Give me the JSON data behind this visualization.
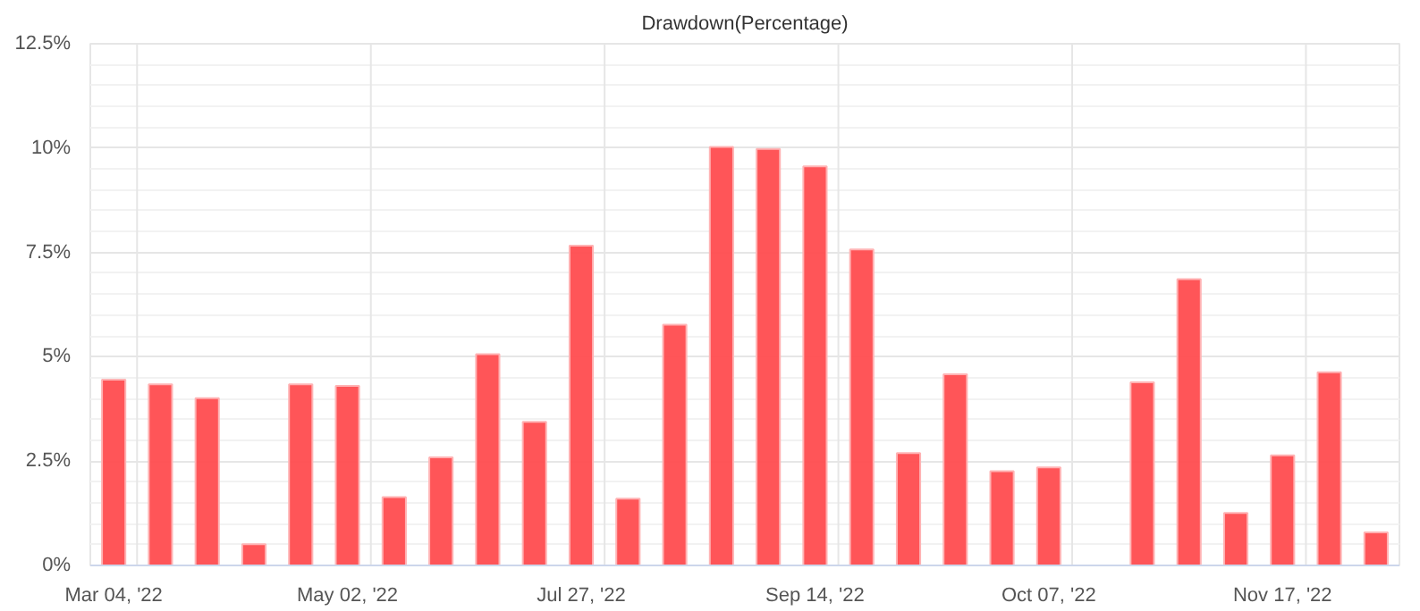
{
  "chart_data": {
    "type": "bar",
    "title": "Drawdown(Percentage)",
    "categories": [
      "Mar 04, '22",
      null,
      null,
      null,
      null,
      "May 02, '22",
      null,
      null,
      null,
      null,
      "Jul 27, '22",
      null,
      null,
      null,
      null,
      "Sep 14, '22",
      null,
      null,
      null,
      null,
      "Oct 07, '22",
      null,
      null,
      null,
      null,
      "Nov 17, '22",
      null,
      null
    ],
    "values": [
      4.45,
      4.34,
      4.01,
      0.51,
      4.34,
      4.3,
      1.64,
      2.59,
      5.06,
      3.44,
      7.66,
      1.6,
      5.77,
      10.03,
      9.98,
      9.56,
      7.57,
      2.69,
      4.58,
      2.26,
      2.35,
      null,
      4.39,
      6.86,
      1.26,
      2.64,
      4.63,
      0.79
    ],
    "color": "#ff4c4f",
    "ylim": [
      0,
      12.5
    ],
    "yticks": [
      {
        "value": 0,
        "label": "0%"
      },
      {
        "value": 2.5,
        "label": "2.5%"
      },
      {
        "value": 5,
        "label": "5%"
      },
      {
        "value": 7.5,
        "label": "7.5%"
      },
      {
        "value": 10,
        "label": "10%"
      },
      {
        "value": 12.5,
        "label": "12.5%"
      }
    ],
    "grid": true
  }
}
